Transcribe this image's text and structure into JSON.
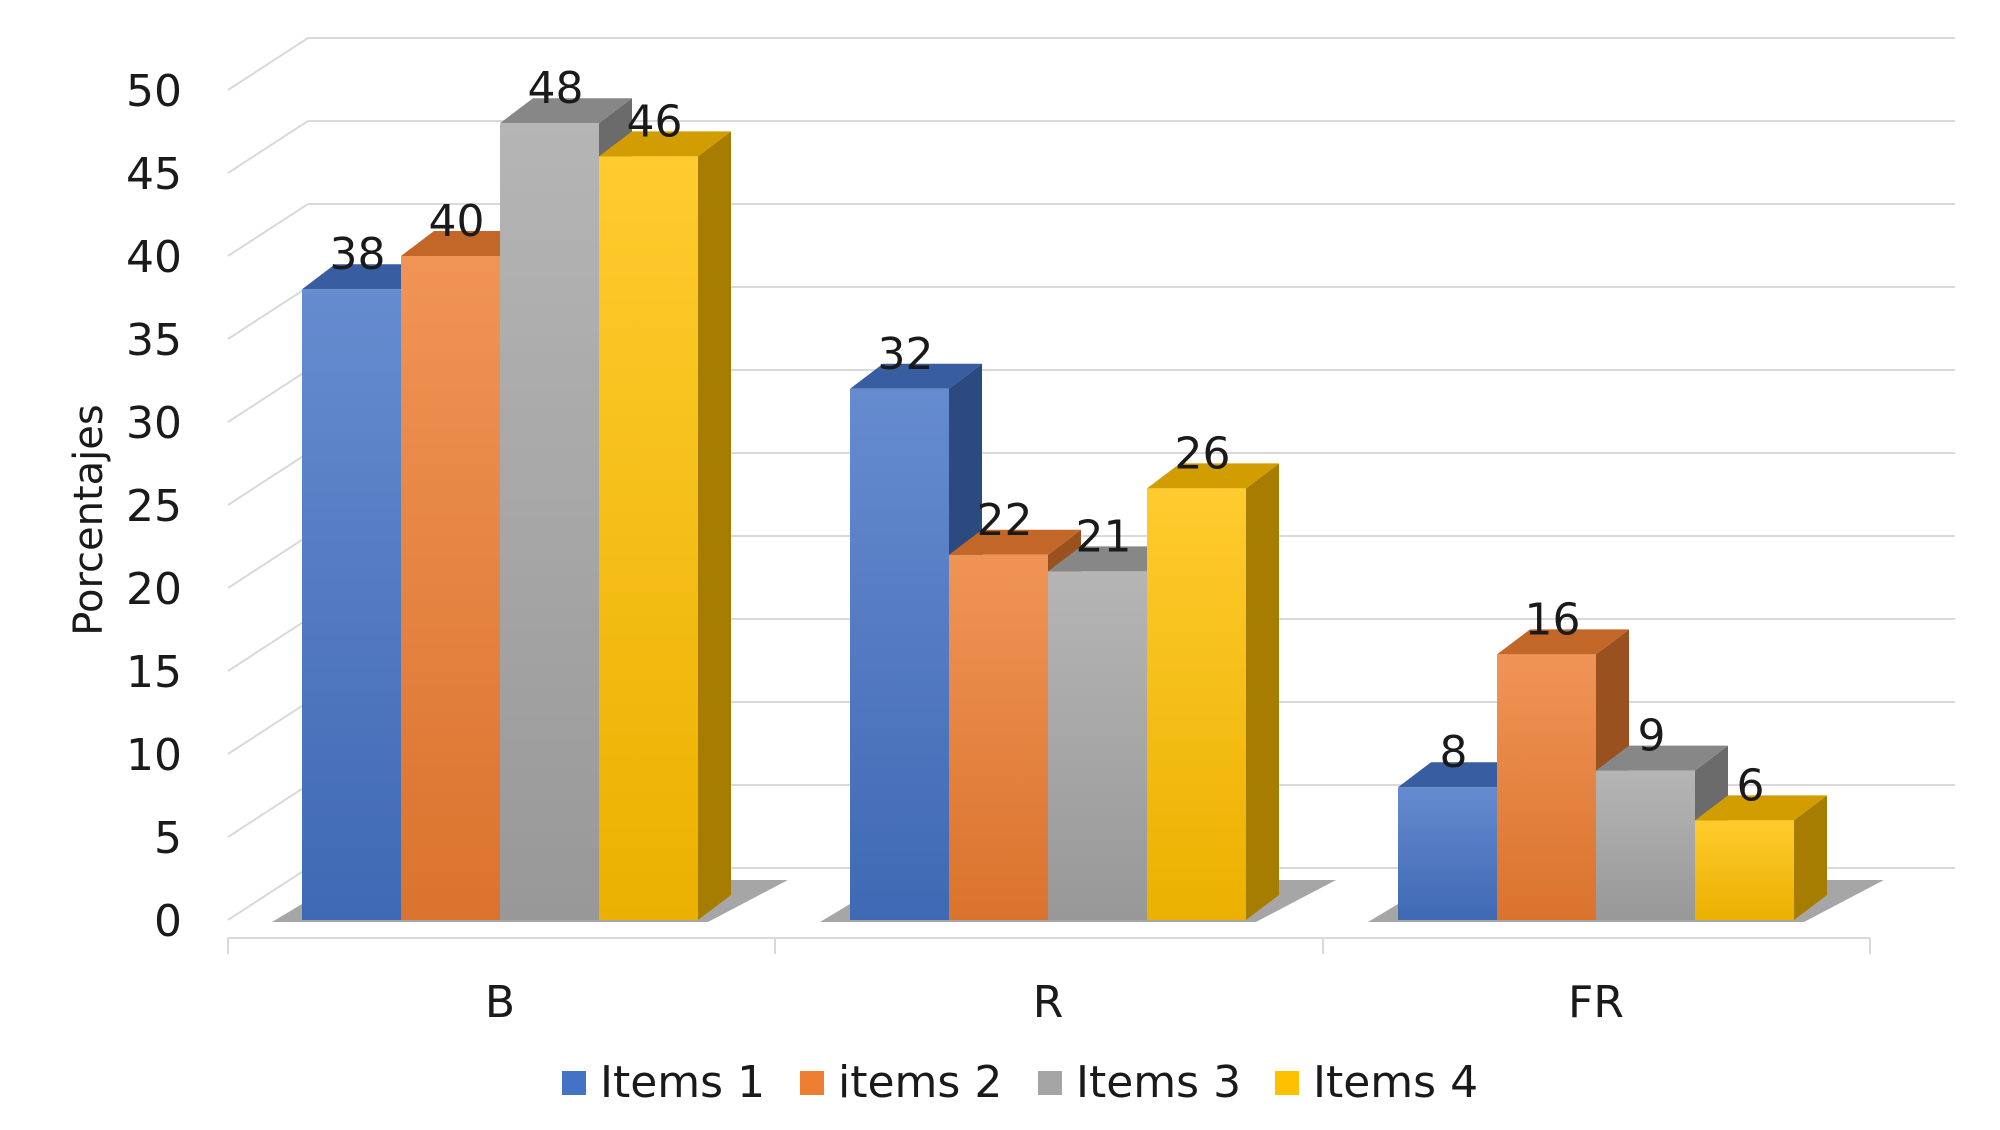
{
  "chart_data": {
    "type": "bar",
    "style": "3d-clustered-column",
    "title": "",
    "xlabel": "",
    "ylabel": "Porcentajes",
    "categories": [
      "B",
      "R",
      "FR"
    ],
    "series": [
      {
        "name": "Items 1",
        "values": [
          38,
          32,
          8
        ],
        "color": "#4472C4"
      },
      {
        "name": "items 2",
        "values": [
          40,
          22,
          16
        ],
        "color": "#ED7D31"
      },
      {
        "name": "Items 3",
        "values": [
          48,
          21,
          9
        ],
        "color": "#A5A5A5"
      },
      {
        "name": "Items 4",
        "values": [
          46,
          26,
          6
        ],
        "color": "#FFC000"
      }
    ],
    "ylim": [
      0,
      50
    ],
    "yticks": [
      0,
      5,
      10,
      15,
      20,
      25,
      30,
      35,
      40,
      45,
      50
    ],
    "grid": true,
    "legend_position": "bottom",
    "data_labels": true
  }
}
